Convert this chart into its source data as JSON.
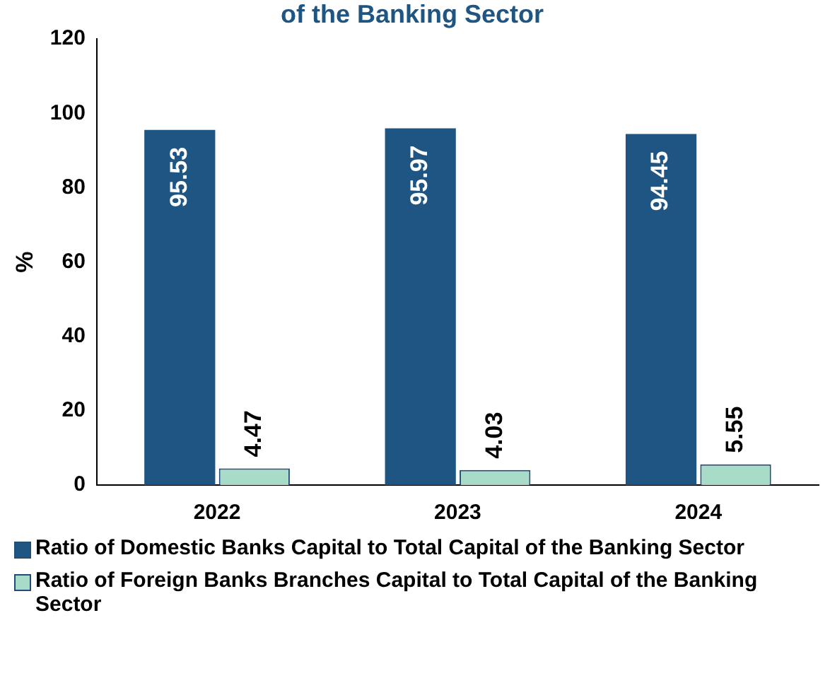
{
  "chart_data": {
    "type": "bar",
    "title": "of the Banking Sector",
    "ylabel": "%",
    "categories": [
      "2022",
      "2023",
      "2024"
    ],
    "series": [
      {
        "name": "Ratio of Domestic Banks Capital to Total Capital of the Banking Sector",
        "color": "#1f5582",
        "values": [
          95.53,
          95.97,
          94.45
        ]
      },
      {
        "name": "Ratio of Foreign Banks Branches Capital to Total Capital of the Banking Sector",
        "color": "#a8dcc8",
        "values": [
          4.47,
          4.03,
          5.55
        ]
      }
    ],
    "ylim": [
      0,
      120
    ],
    "yticks": [
      0,
      20,
      40,
      60,
      80,
      100,
      120
    ],
    "grid": false,
    "legend": "bottom",
    "data_labels": true
  }
}
